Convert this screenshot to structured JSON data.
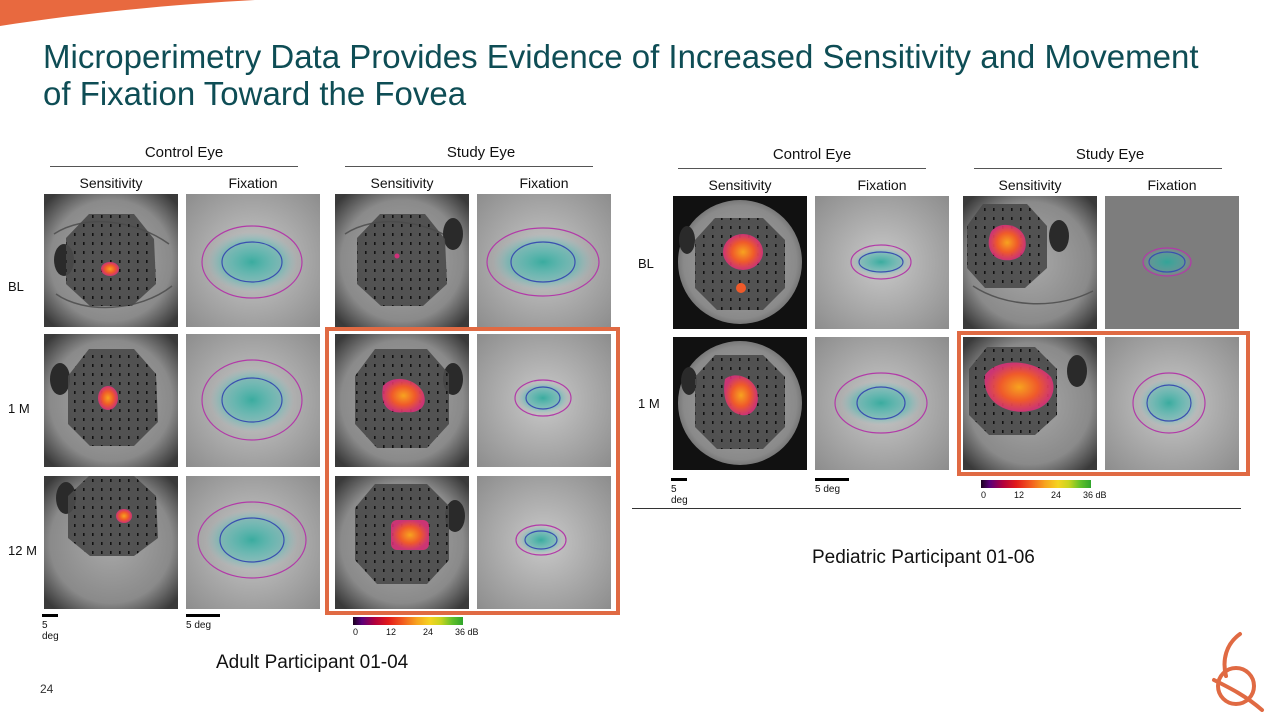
{
  "slide": {
    "title": "Microperimetry Data Provides Evidence of Increased Sensitivity and Movement of Fixation Toward the Fovea",
    "page_number": "24",
    "accent_color": "#e06a43",
    "title_color": "#0e4d55"
  },
  "adult": {
    "caption": "Adult Participant 01-04",
    "groups": [
      {
        "label": "Control Eye",
        "columns": [
          "Sensitivity",
          "Fixation"
        ]
      },
      {
        "label": "Study Eye",
        "columns": [
          "Sensitivity",
          "Fixation"
        ]
      }
    ],
    "rows": [
      "BL",
      "1 M",
      "12 M"
    ],
    "scale_labels": [
      "5 deg",
      "5 deg"
    ]
  },
  "pediatric": {
    "caption": "Pediatric Participant 01-06",
    "groups": [
      {
        "label": "Control Eye",
        "columns": [
          "Sensitivity",
          "Fixation"
        ]
      },
      {
        "label": "Study Eye",
        "columns": [
          "Sensitivity",
          "Fixation"
        ]
      }
    ],
    "rows": [
      "BL",
      "1 M"
    ],
    "scale_labels": [
      "5 deg",
      "5 deg"
    ]
  },
  "colorbar": {
    "ticks": [
      "0",
      "12",
      "24",
      "36 dB"
    ]
  },
  "icons": {
    "corner": "orange-swoosh-icon",
    "logo": "company-logo-icon"
  }
}
